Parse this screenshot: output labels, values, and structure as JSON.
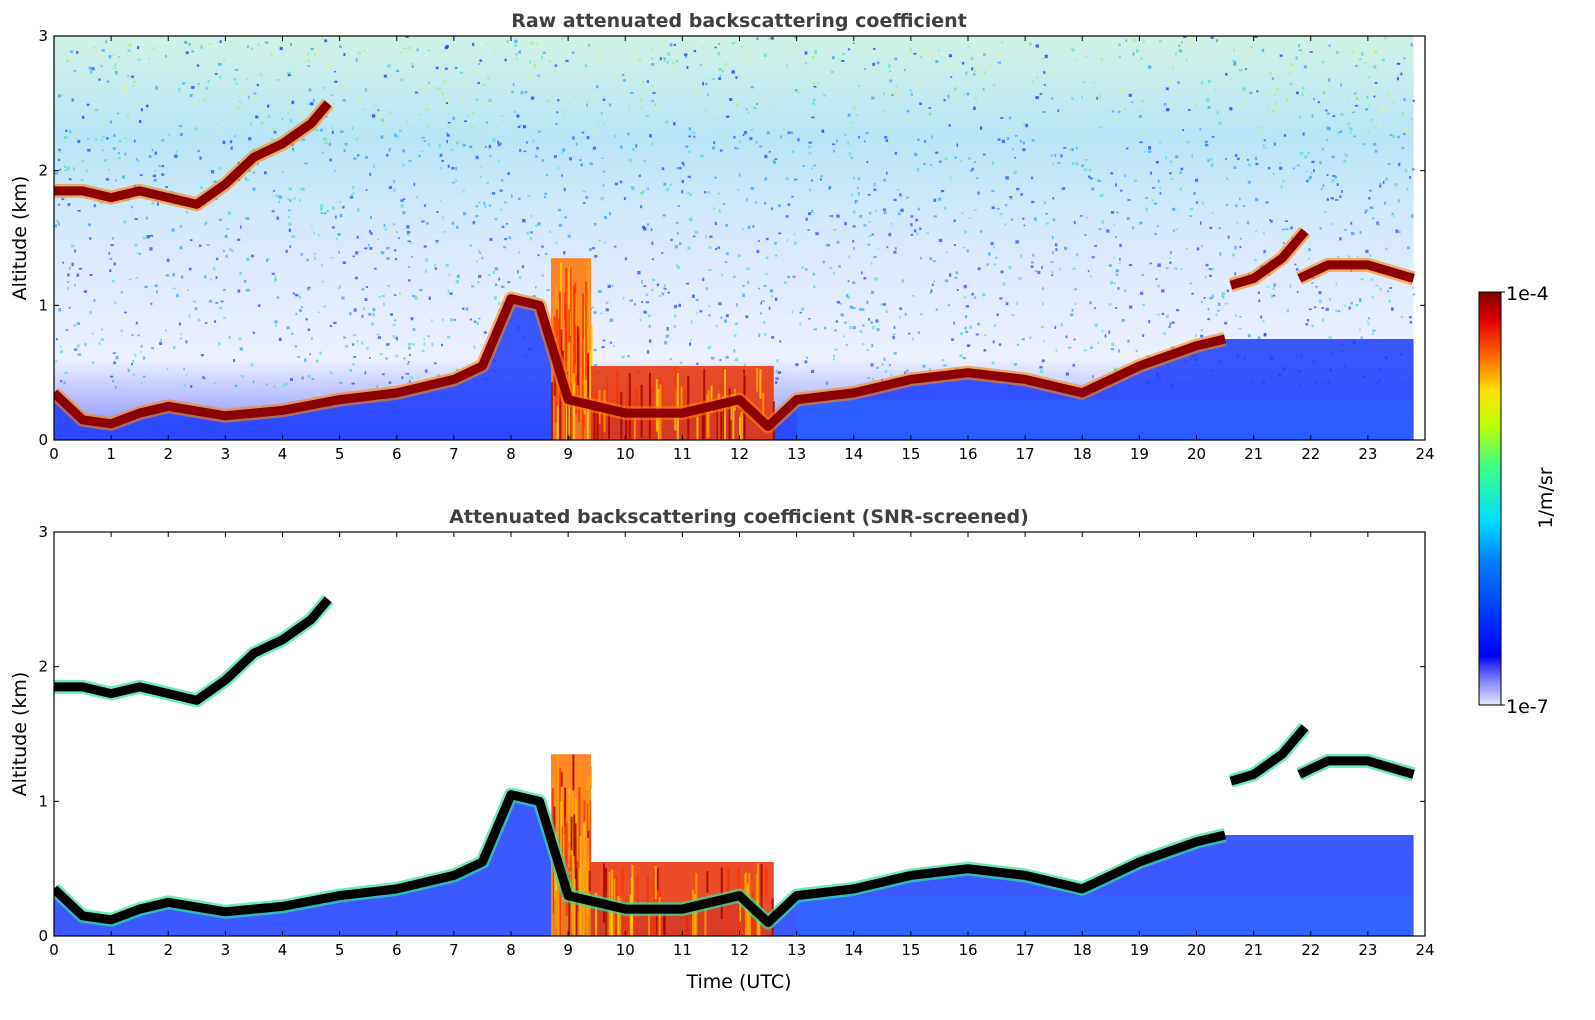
{
  "chart_data": [
    {
      "type": "heatmap",
      "title": "Raw attenuated backscattering coefficient",
      "xlabel": "",
      "ylabel": "Altitude (km)",
      "xlim": [
        0,
        24
      ],
      "ylim": [
        0,
        3
      ],
      "xticks": [
        "0",
        "1",
        "2",
        "3",
        "4",
        "5",
        "6",
        "7",
        "8",
        "9",
        "10",
        "11",
        "12",
        "13",
        "14",
        "15",
        "16",
        "17",
        "18",
        "19",
        "20",
        "21",
        "22",
        "23",
        "24"
      ],
      "yticks": [
        "0",
        "1",
        "2",
        "3"
      ],
      "data_end_hour": 23.8,
      "screened": false,
      "layers": [
        {
          "kind": "cloud_layer",
          "points": [
            [
              0,
              1.85
            ],
            [
              0.5,
              1.85
            ],
            [
              1,
              1.8
            ],
            [
              1.5,
              1.85
            ],
            [
              2,
              1.8
            ],
            [
              2.5,
              1.75
            ],
            [
              3,
              1.9
            ],
            [
              3.5,
              2.1
            ],
            [
              4,
              2.2
            ],
            [
              4.5,
              2.35
            ],
            [
              4.8,
              2.5
            ]
          ]
        },
        {
          "kind": "aerosol_layer",
          "points": [
            [
              0,
              0.35
            ],
            [
              0.5,
              0.15
            ],
            [
              1,
              0.12
            ],
            [
              1.5,
              0.2
            ],
            [
              2,
              0.25
            ],
            [
              3,
              0.18
            ],
            [
              4,
              0.22
            ],
            [
              5,
              0.3
            ],
            [
              6,
              0.35
            ],
            [
              7,
              0.45
            ],
            [
              7.5,
              0.55
            ],
            [
              8,
              1.05
            ],
            [
              8.5,
              1.0
            ],
            [
              9,
              0.3
            ],
            [
              10,
              0.2
            ],
            [
              11,
              0.2
            ],
            [
              12,
              0.3
            ],
            [
              12.5,
              0.1
            ],
            [
              13,
              0.3
            ],
            [
              14,
              0.35
            ],
            [
              15,
              0.45
            ],
            [
              16,
              0.5
            ],
            [
              17,
              0.45
            ],
            [
              18,
              0.35
            ],
            [
              18.5,
              0.45
            ],
            [
              19,
              0.55
            ],
            [
              20,
              0.7
            ],
            [
              20.5,
              0.75
            ]
          ]
        },
        {
          "kind": "cloud_layer",
          "points": [
            [
              20.6,
              1.15
            ],
            [
              21,
              1.2
            ],
            [
              21.5,
              1.35
            ],
            [
              21.9,
              1.55
            ]
          ]
        },
        {
          "kind": "cloud_layer",
          "points": [
            [
              21.8,
              1.2
            ],
            [
              22.3,
              1.3
            ],
            [
              23,
              1.3
            ],
            [
              23.8,
              1.2
            ]
          ]
        }
      ],
      "dense_cloud_span": [
        [
          8.7,
          9.4
        ],
        [
          9.4,
          12.6
        ]
      ]
    },
    {
      "type": "heatmap",
      "title": "Attenuated backscattering coefficient (SNR-screened)",
      "xlabel": "Time (UTC)",
      "ylabel": "Altitude (km)",
      "xlim": [
        0,
        24
      ],
      "ylim": [
        0,
        3
      ],
      "xticks": [
        "0",
        "1",
        "2",
        "3",
        "4",
        "5",
        "6",
        "7",
        "8",
        "9",
        "10",
        "11",
        "12",
        "13",
        "14",
        "15",
        "16",
        "17",
        "18",
        "19",
        "20",
        "21",
        "22",
        "23",
        "24"
      ],
      "yticks": [
        "0",
        "1",
        "2",
        "3"
      ],
      "data_end_hour": 23.8,
      "screened": true,
      "layers": [
        {
          "kind": "cloud_layer",
          "points": [
            [
              0,
              1.85
            ],
            [
              0.5,
              1.85
            ],
            [
              1,
              1.8
            ],
            [
              1.5,
              1.85
            ],
            [
              2,
              1.8
            ],
            [
              2.5,
              1.75
            ],
            [
              3,
              1.9
            ],
            [
              3.5,
              2.1
            ],
            [
              4,
              2.2
            ],
            [
              4.5,
              2.35
            ],
            [
              4.8,
              2.5
            ]
          ]
        },
        {
          "kind": "aerosol_layer",
          "points": [
            [
              0,
              0.35
            ],
            [
              0.5,
              0.15
            ],
            [
              1,
              0.12
            ],
            [
              1.5,
              0.2
            ],
            [
              2,
              0.25
            ],
            [
              3,
              0.18
            ],
            [
              4,
              0.22
            ],
            [
              5,
              0.3
            ],
            [
              6,
              0.35
            ],
            [
              7,
              0.45
            ],
            [
              7.5,
              0.55
            ],
            [
              8,
              1.05
            ],
            [
              8.5,
              1.0
            ],
            [
              9,
              0.3
            ],
            [
              10,
              0.2
            ],
            [
              11,
              0.2
            ],
            [
              12,
              0.3
            ],
            [
              12.5,
              0.1
            ],
            [
              13,
              0.3
            ],
            [
              14,
              0.35
            ],
            [
              15,
              0.45
            ],
            [
              16,
              0.5
            ],
            [
              17,
              0.45
            ],
            [
              18,
              0.35
            ],
            [
              18.5,
              0.45
            ],
            [
              19,
              0.55
            ],
            [
              20,
              0.7
            ],
            [
              20.5,
              0.75
            ]
          ]
        },
        {
          "kind": "cloud_layer",
          "points": [
            [
              20.6,
              1.15
            ],
            [
              21,
              1.2
            ],
            [
              21.5,
              1.35
            ],
            [
              21.9,
              1.55
            ]
          ]
        },
        {
          "kind": "cloud_layer",
          "points": [
            [
              21.8,
              1.2
            ],
            [
              22.3,
              1.3
            ],
            [
              23,
              1.3
            ],
            [
              23.8,
              1.2
            ]
          ]
        }
      ],
      "dense_cloud_span": [
        [
          8.7,
          9.4
        ],
        [
          9.4,
          12.6
        ]
      ]
    }
  ],
  "colorbar": {
    "label": "1/m/sr",
    "max_label": "1e-4",
    "min_label": "1e-7",
    "scale": "log",
    "range": [
      1e-07,
      0.0001
    ],
    "colormap": "jet"
  },
  "colors": {
    "title": "#404040",
    "noise_low": "#1010ff",
    "cloud": "#8b0000",
    "screened_core": "#000000"
  }
}
